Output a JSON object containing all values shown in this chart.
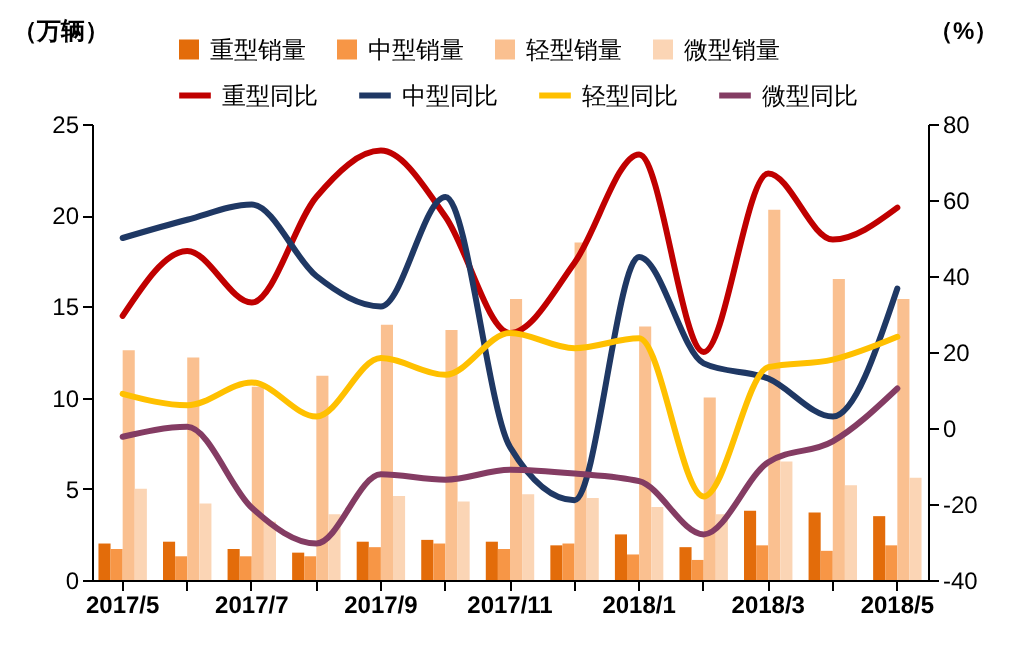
{
  "chart_data": {
    "type": "bar",
    "ylabel": "（万辆）",
    "y2label": "（%）",
    "categories": [
      "2017/5",
      null,
      "2017/7",
      null,
      "2017/9",
      null,
      "2017/11",
      null,
      "2018/1",
      null,
      "2018/3",
      null,
      "2018/5"
    ],
    "series": [
      {
        "name": "重型销量",
        "color": "#e36c0a",
        "values": [
          2.0,
          2.1,
          1.7,
          1.5,
          2.1,
          2.2,
          2.1,
          1.9,
          2.5,
          1.8,
          3.8,
          3.7,
          3.5
        ]
      },
      {
        "name": "中型销量",
        "color": "#f79646",
        "values": [
          1.7,
          1.3,
          1.3,
          1.3,
          1.8,
          2.0,
          1.7,
          2.0,
          1.4,
          1.1,
          1.9,
          1.6,
          1.9
        ]
      },
      {
        "name": "轻型销量",
        "color": "#fac090",
        "values": [
          12.6,
          12.2,
          10.6,
          11.2,
          14.0,
          13.7,
          15.4,
          18.5,
          13.9,
          10.0,
          20.3,
          16.5,
          15.4
        ]
      },
      {
        "name": "微型销量",
        "color": "#fbd5b5",
        "values": [
          5.0,
          4.2,
          3.2,
          3.6,
          4.6,
          4.3,
          4.7,
          4.5,
          4.0,
          3.6,
          6.5,
          5.2,
          5.6
        ]
      },
      {
        "name": "重型同比",
        "type": "line",
        "axis": "y2",
        "color": "#c00000",
        "values": [
          29.5,
          46.6,
          33,
          60.8,
          73,
          55.6,
          25,
          43.5,
          72,
          20,
          67,
          49.6,
          58
        ]
      },
      {
        "name": "中型同比",
        "type": "line",
        "axis": "y2",
        "color": "#1f3864",
        "values": [
          50,
          54.8,
          58.8,
          40,
          32,
          60.8,
          -5,
          -19,
          45,
          17,
          13,
          3,
          36.7
        ]
      },
      {
        "name": "轻型同比",
        "type": "line",
        "axis": "y2",
        "color": "#ffc000",
        "values": [
          9,
          6,
          12,
          3,
          18.4,
          14,
          25,
          21,
          23.6,
          -18,
          16,
          18,
          24
        ]
      },
      {
        "name": "微型同比",
        "type": "line",
        "axis": "y2",
        "color": "#843c63",
        "values": [
          -2.3,
          0.3,
          -21,
          -30.4,
          -12.2,
          -13.6,
          -11,
          -12,
          -14,
          -28,
          -9,
          -3.5,
          10.4
        ]
      }
    ],
    "ylim": [
      0,
      25
    ],
    "yticks": [
      0,
      5,
      10,
      15,
      20,
      25
    ],
    "y2lim": [
      -40,
      80
    ],
    "y2ticks": [
      -40,
      -20,
      0,
      20,
      40,
      60,
      80
    ],
    "grid": false,
    "legend": "top",
    "marker": "none",
    "line_style": "solid"
  }
}
